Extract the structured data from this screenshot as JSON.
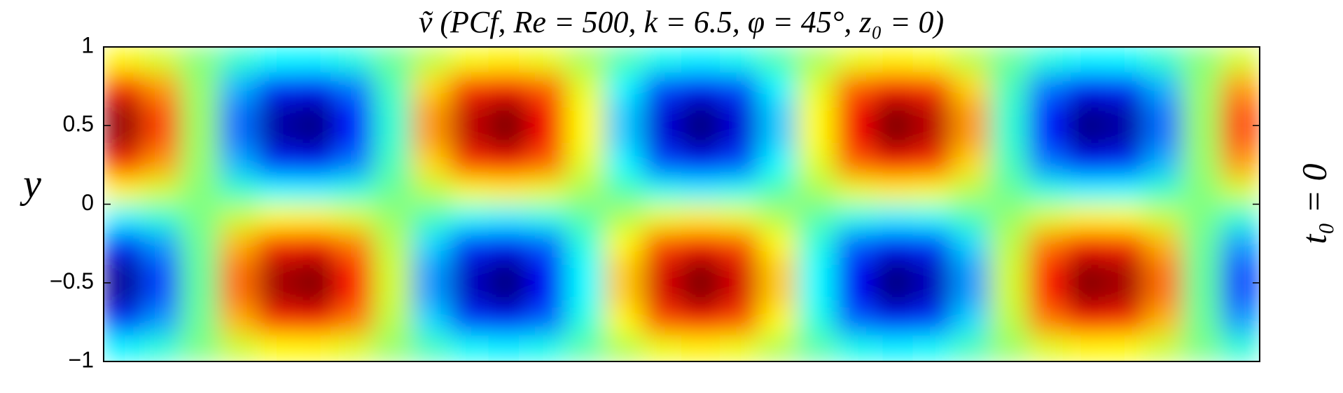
{
  "chart_data": {
    "type": "heatmap",
    "title": "ṽ  (PCf,  Re =  500,  k = 6.5,  φ = 45°,  z₀ =  0)",
    "ylabel": "y",
    "right_label": "t₀ = 0",
    "colormap": "jet",
    "ylim": [
      -1,
      1
    ],
    "yticks": [
      {
        "value": -1,
        "label": "−1"
      },
      {
        "value": -0.5,
        "label": "−0.5"
      },
      0,
      0.5,
      1
    ],
    "y": [
      0.9167,
      0.75,
      0.5833,
      0.4167,
      0.25,
      0.0833,
      -0.0833,
      -0.25,
      -0.4167,
      -0.5833,
      -0.75,
      -0.9167
    ],
    "z": [
      [
        0.25,
        0.16,
        0.01,
        -0.14,
        -0.24,
        -0.25,
        -0.18,
        -0.04,
        0.11,
        0.23,
        0.26,
        0.2,
        0.07,
        -0.09,
        -0.21,
        -0.26,
        -0.21,
        -0.09,
        0.07,
        0.2,
        0.26,
        0.23,
        0.11,
        -0.04,
        -0.18,
        -0.25,
        -0.24,
        -0.14,
        0.01,
        0.16
      ],
      [
        0.67,
        0.43,
        0.04,
        -0.38,
        -0.65,
        -0.7,
        -0.49,
        -0.11,
        0.31,
        0.62,
        0.71,
        0.54,
        0.18,
        -0.25,
        -0.58,
        -0.71,
        -0.58,
        -0.25,
        0.18,
        0.54,
        0.71,
        0.62,
        0.31,
        -0.11,
        -0.49,
        -0.7,
        -0.65,
        -0.38,
        0.04,
        0.43
      ],
      [
        0.92,
        0.59,
        0.05,
        -0.51,
        -0.89,
        -0.95,
        -0.67,
        -0.15,
        0.43,
        0.84,
        0.97,
        0.74,
        0.24,
        -0.34,
        -0.8,
        -0.97,
        -0.8,
        -0.34,
        0.24,
        0.74,
        0.97,
        0.85,
        0.43,
        -0.15,
        -0.67,
        -0.95,
        -0.89,
        -0.51,
        0.05,
        0.59
      ],
      [
        0.92,
        0.59,
        0.05,
        -0.51,
        -0.89,
        -0.95,
        -0.67,
        -0.15,
        0.43,
        0.84,
        0.97,
        0.74,
        0.24,
        -0.34,
        -0.8,
        -0.97,
        -0.8,
        -0.34,
        0.24,
        0.74,
        0.97,
        0.85,
        0.43,
        -0.15,
        -0.67,
        -0.95,
        -0.89,
        -0.51,
        0.05,
        0.59
      ],
      [
        0.67,
        0.43,
        0.04,
        -0.38,
        -0.65,
        -0.7,
        -0.49,
        -0.11,
        0.31,
        0.62,
        0.71,
        0.54,
        0.18,
        -0.25,
        -0.58,
        -0.71,
        -0.58,
        -0.25,
        0.18,
        0.54,
        0.71,
        0.62,
        0.31,
        -0.11,
        -0.49,
        -0.7,
        -0.65,
        -0.38,
        0.04,
        0.43
      ],
      [
        0.25,
        0.16,
        0.01,
        -0.14,
        -0.24,
        -0.25,
        -0.18,
        -0.04,
        0.11,
        0.23,
        0.26,
        0.2,
        0.07,
        -0.09,
        -0.21,
        -0.26,
        -0.21,
        -0.09,
        0.07,
        0.2,
        0.26,
        0.23,
        0.11,
        -0.04,
        -0.18,
        -0.25,
        -0.24,
        -0.14,
        0.01,
        0.16
      ],
      [
        -0.25,
        -0.16,
        -0.01,
        0.14,
        0.24,
        0.25,
        0.18,
        0.04,
        -0.11,
        -0.23,
        -0.26,
        -0.2,
        -0.07,
        0.09,
        0.21,
        0.26,
        0.21,
        0.09,
        -0.07,
        -0.2,
        -0.26,
        -0.23,
        -0.11,
        0.04,
        0.18,
        0.25,
        0.24,
        0.14,
        -0.01,
        -0.16
      ],
      [
        -0.67,
        -0.43,
        -0.04,
        0.38,
        0.65,
        0.7,
        0.49,
        0.11,
        -0.31,
        -0.62,
        -0.71,
        -0.54,
        -0.18,
        0.25,
        0.58,
        0.71,
        0.58,
        0.25,
        -0.18,
        -0.54,
        -0.71,
        -0.62,
        -0.31,
        0.11,
        0.49,
        0.7,
        0.65,
        0.38,
        -0.04,
        -0.43
      ],
      [
        -0.92,
        -0.59,
        -0.05,
        0.51,
        0.89,
        0.95,
        0.67,
        0.15,
        -0.43,
        -0.84,
        -0.97,
        -0.74,
        -0.24,
        0.34,
        0.8,
        0.97,
        0.8,
        0.34,
        -0.24,
        -0.74,
        -0.97,
        -0.85,
        -0.43,
        0.15,
        0.67,
        0.95,
        0.89,
        0.51,
        -0.05,
        -0.59
      ],
      [
        -0.92,
        -0.59,
        -0.05,
        0.51,
        0.89,
        0.95,
        0.67,
        0.15,
        -0.43,
        -0.84,
        -0.97,
        -0.74,
        -0.24,
        0.34,
        0.8,
        0.97,
        0.8,
        0.34,
        -0.24,
        -0.74,
        -0.97,
        -0.85,
        -0.43,
        0.15,
        0.67,
        0.95,
        0.89,
        0.51,
        -0.05,
        -0.59
      ],
      [
        -0.67,
        -0.43,
        -0.04,
        0.38,
        0.65,
        0.7,
        0.49,
        0.11,
        -0.31,
        -0.62,
        -0.71,
        -0.54,
        -0.18,
        0.25,
        0.58,
        0.71,
        0.58,
        0.25,
        -0.18,
        -0.54,
        -0.71,
        -0.62,
        -0.31,
        0.11,
        0.49,
        0.7,
        0.65,
        0.38,
        -0.04,
        -0.43
      ],
      [
        -0.25,
        -0.16,
        -0.01,
        0.14,
        0.24,
        0.25,
        0.18,
        0.04,
        -0.11,
        -0.23,
        -0.26,
        -0.2,
        -0.07,
        0.09,
        0.21,
        0.26,
        0.21,
        0.09,
        -0.07,
        -0.2,
        -0.26,
        -0.23,
        -0.11,
        0.04,
        0.18,
        0.25,
        0.24,
        0.14,
        -0.01,
        -0.16
      ]
    ]
  }
}
